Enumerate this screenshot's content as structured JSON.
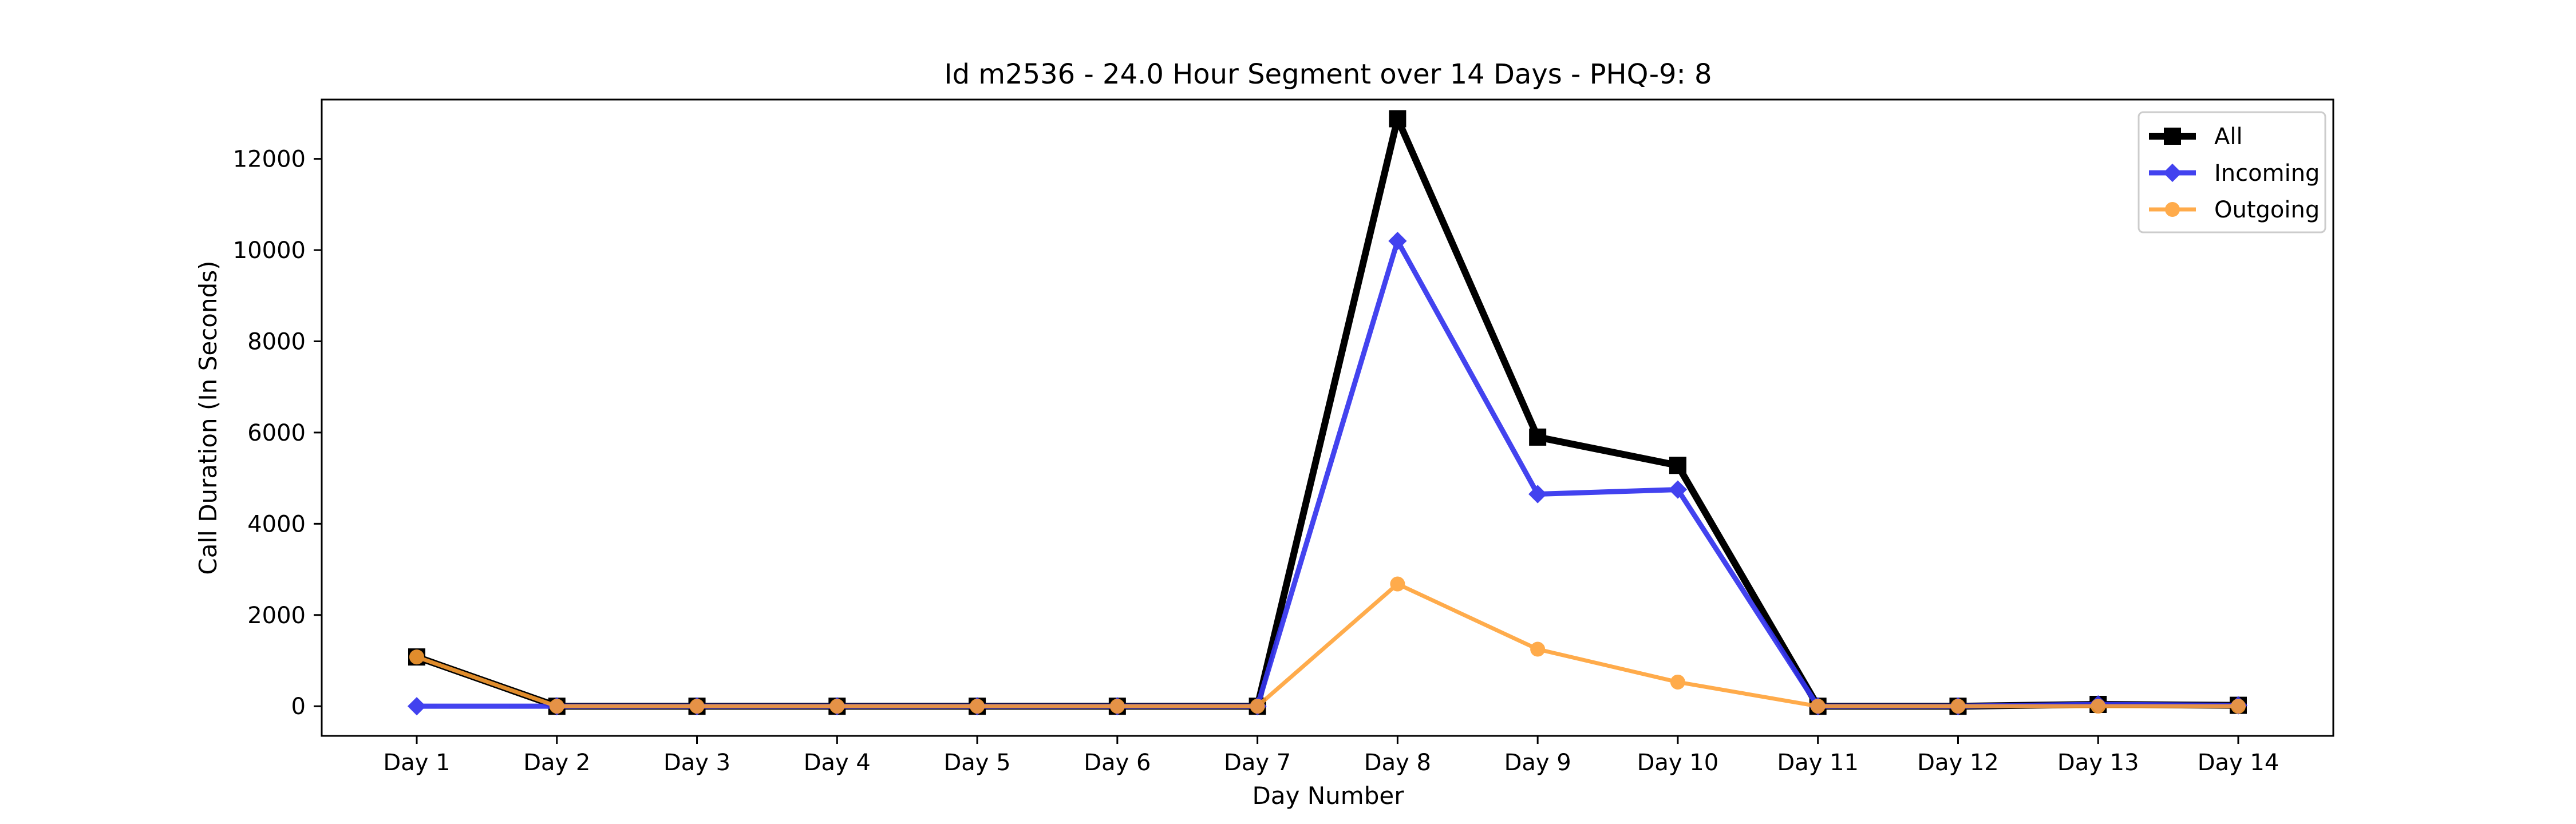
{
  "chart_data": {
    "type": "line",
    "title": "Id m2536 - 24.0 Hour Segment over 14 Days - PHQ-9: 8",
    "xlabel": "Day Number",
    "ylabel": "Call Duration (In Seconds)",
    "categories": [
      "Day 1",
      "Day 2",
      "Day 3",
      "Day 4",
      "Day 5",
      "Day 6",
      "Day 7",
      "Day 8",
      "Day 9",
      "Day 10",
      "Day 11",
      "Day 12",
      "Day 13",
      "Day 14"
    ],
    "ylim": [
      -650,
      13300
    ],
    "yticks": [
      0,
      2000,
      4000,
      6000,
      8000,
      10000,
      12000
    ],
    "grid": false,
    "legend_position": "top-right",
    "series": [
      {
        "name": "All",
        "color": "#000000",
        "marker": "square",
        "values": [
          1080,
          0,
          0,
          0,
          0,
          0,
          0,
          12880,
          5900,
          5280,
          0,
          0,
          40,
          20
        ]
      },
      {
        "name": "Incoming",
        "color": "#3333ee",
        "marker": "diamond",
        "values": [
          0,
          0,
          0,
          0,
          0,
          0,
          0,
          10200,
          4650,
          4750,
          0,
          0,
          40,
          20
        ]
      },
      {
        "name": "Outgoing",
        "color": "#ffa033",
        "marker": "circle",
        "values": [
          1080,
          0,
          0,
          0,
          0,
          0,
          0,
          2680,
          1250,
          530,
          0,
          0,
          0,
          0
        ]
      }
    ]
  }
}
